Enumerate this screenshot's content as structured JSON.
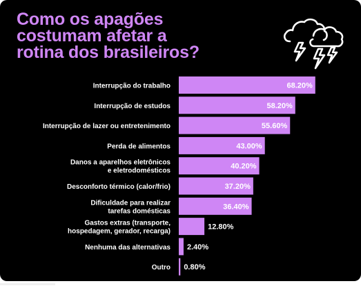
{
  "title_lines": [
    "Como os apagões",
    "costumam afetar a",
    "rotina dos brasileiros?"
  ],
  "icon": "thunderstorm-clouds-icon",
  "colors": {
    "background": "#000000",
    "accent": "#cf86f5",
    "bar": "#cf86f5",
    "text": "#ffffff"
  },
  "chart_data": {
    "type": "bar",
    "orientation": "horizontal",
    "title": "Como os apagões costumam afetar a rotina dos brasileiros?",
    "categories": [
      [
        "Interrupção do trabalho"
      ],
      [
        "Interrupção de estudos"
      ],
      [
        "Interrupção de lazer ou entretenimento"
      ],
      [
        "Perda de alimentos"
      ],
      [
        "Danos a aparelhos eletrônicos",
        "e eletrodomésticos"
      ],
      [
        "Desconforto térmico (calor/frio)"
      ],
      [
        "Dificuldade para realizar",
        "tarefas domésticas"
      ],
      [
        "Gastos extras (transporte,",
        "hospedagem, gerador, recarga)"
      ],
      [
        "Nenhuma das alternativas"
      ],
      [
        "Outro"
      ]
    ],
    "values": [
      68.2,
      58.2,
      55.6,
      43.0,
      40.2,
      37.2,
      36.4,
      12.8,
      2.4,
      0.8
    ],
    "value_labels": [
      "68.20%",
      "58.20%",
      "55.60%",
      "43.00%",
      "40.20%",
      "37.20%",
      "36.40%",
      "12.80%",
      "2.40%",
      "0.80%"
    ],
    "xlim": [
      0,
      100
    ],
    "grid": false,
    "legend": "none"
  }
}
